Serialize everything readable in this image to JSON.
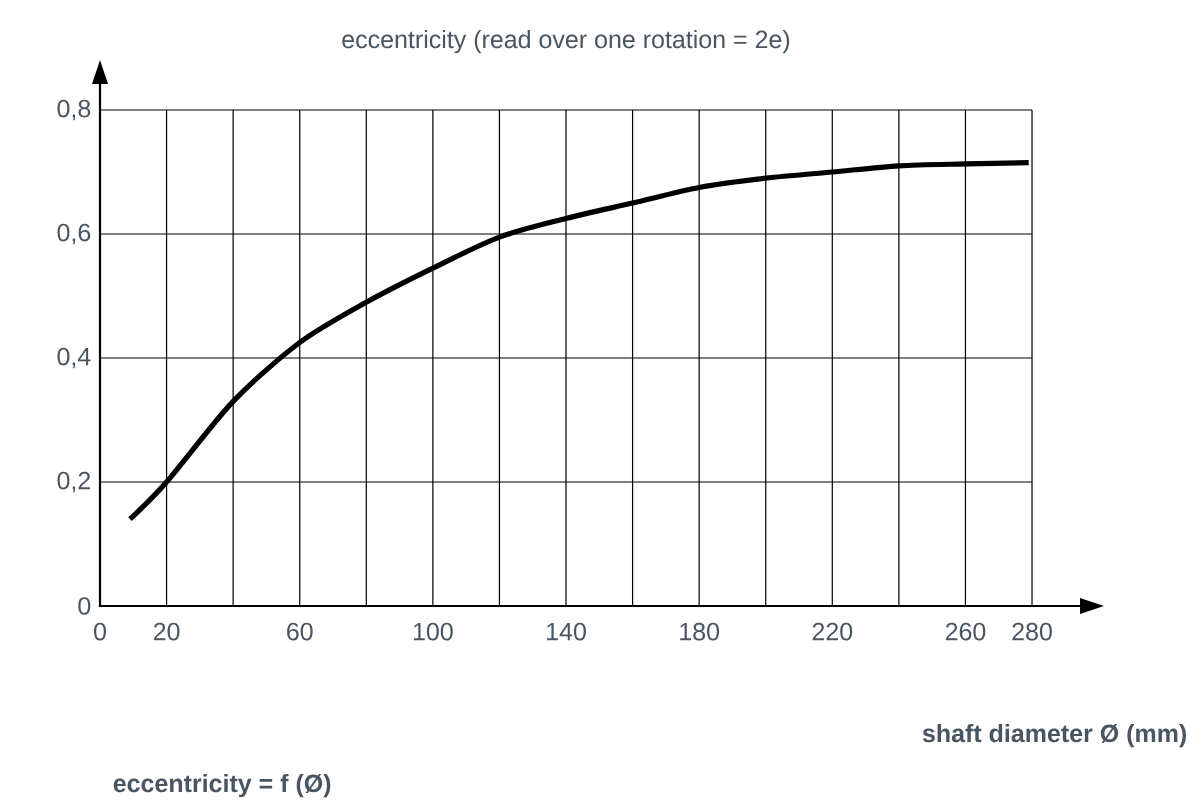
{
  "chart_data": {
    "type": "line",
    "title": "eccentricity (read over one rotation = 2e)",
    "xlabel": "shaft diameter Ø (mm)",
    "annotations": [
      "eccentricity = f (Ø)"
    ],
    "series": [
      {
        "color": "#000000",
        "x": [
          9,
          20,
          40,
          60,
          80,
          100,
          120,
          140,
          160,
          180,
          200,
          220,
          240,
          260,
          279
        ],
        "values": [
          0.14,
          0.2,
          0.33,
          0.425,
          0.49,
          0.545,
          0.595,
          0.625,
          0.65,
          0.675,
          0.69,
          0.7,
          0.71,
          0.713,
          0.715
        ]
      }
    ],
    "xlim": [
      0,
      280
    ],
    "ylim": [
      0,
      0.8
    ],
    "xticks": [
      0,
      20,
      {
        "value": 40,
        "label": null
      },
      60,
      {
        "value": 80,
        "label": null
      },
      100,
      {
        "value": 120,
        "label": null
      },
      140,
      {
        "value": 160,
        "label": null
      },
      180,
      {
        "value": 200,
        "label": null
      },
      220,
      {
        "value": 240,
        "label": null
      },
      260,
      280
    ],
    "yticks": [
      0,
      {
        "value": 0.2,
        "label": "0,2"
      },
      {
        "value": 0.4,
        "label": "0,4"
      },
      {
        "value": 0.6,
        "label": "0,6"
      },
      {
        "value": 0.8,
        "label": "0,8"
      }
    ],
    "grid": true,
    "marker": "none",
    "line_style": "solid"
  }
}
